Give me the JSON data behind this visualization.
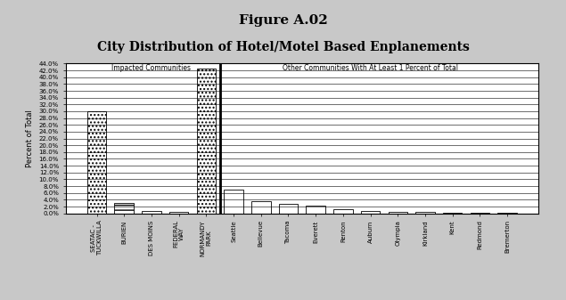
{
  "title_line1": "Figure A.02",
  "title_line2": "City Distribution of Hotel/Motel Based Enplanements",
  "ylabel": "Percent of Total",
  "section1_label": "Impacted Communities",
  "section2_label": "Other Communities With At Least 1 Percent of Total",
  "ylim": [
    0,
    44
  ],
  "ytick_step": 2,
  "categories": [
    "SEATAC -\nTUCKWILLA",
    "BURIEN",
    "DES MOINS",
    "FEDERAL\nWAY",
    "NORMANDY\nPARK",
    "Seattle",
    "Bellevue",
    "Tacoma",
    "Everett",
    "Renton",
    "Auburn",
    "Olympia",
    "Kirkland",
    "Kent",
    "Redmond",
    "Bremerton"
  ],
  "values": [
    30.0,
    3.0,
    0.8,
    0.5,
    42.5,
    7.0,
    3.5,
    2.7,
    2.2,
    1.2,
    0.8,
    0.5,
    0.4,
    0.3,
    0.2,
    0.15
  ],
  "impacted_count": 5,
  "hatches": [
    "....",
    "---",
    "---",
    "---",
    "....",
    "",
    "",
    "",
    "",
    "",
    "",
    "",
    "",
    "",
    "",
    ""
  ],
  "bar_edge_color": "black",
  "divider_color": "black",
  "outer_bg": "#c8c8c8",
  "inner_bg": "white",
  "title_fontsize": 11,
  "subtitle_fontsize": 10,
  "label_fontsize": 5,
  "ylabel_fontsize": 6,
  "ytick_fontsize": 5,
  "section_label_fontsize": 5.5
}
